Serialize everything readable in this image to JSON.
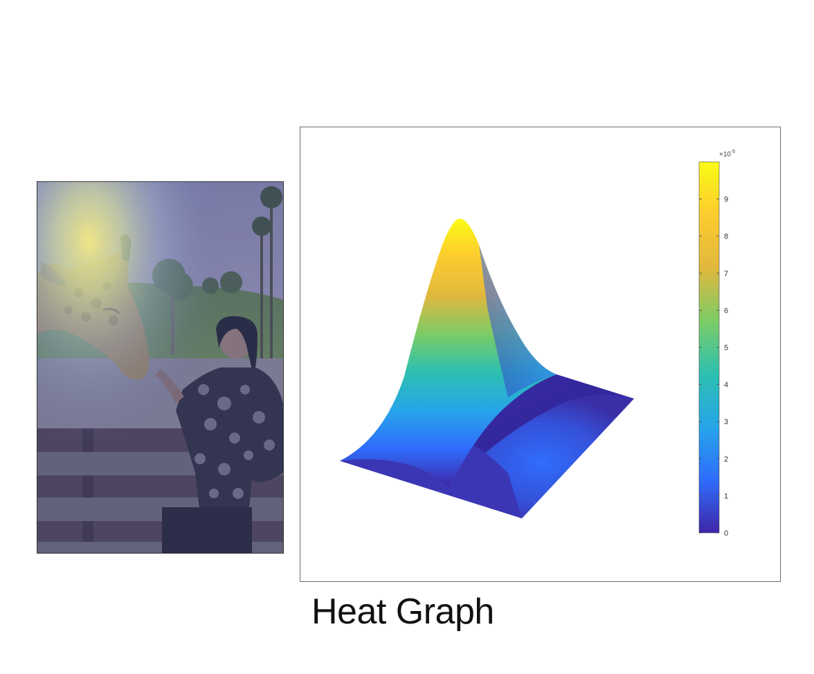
{
  "caption": "Heat Graph",
  "photo": {
    "heat_center": [
      0.21,
      0.16
    ],
    "heat_colors": [
      "#f5ea84",
      "#cfe2b4",
      "#a7b9d6",
      "#5d6ca6"
    ]
  },
  "chart_data": {
    "type": "surface",
    "title": "",
    "colorbar": {
      "min": 0,
      "max": 0.0001,
      "ticks": [
        0,
        1,
        2,
        3,
        4,
        5,
        6,
        7,
        8,
        9
      ],
      "exponent_label": "×10",
      "exponent_power": "-5",
      "colormap": [
        "#3e26a8",
        "#2f6dfc",
        "#26a5e9",
        "#2dc0b0",
        "#7ccc66",
        "#e0b83d",
        "#fdcb2f",
        "#f9fb14"
      ]
    },
    "surface": {
      "peak_value": 9.8e-05,
      "secondary_peak_value": 1.8e-05,
      "floor_value": 0
    }
  }
}
